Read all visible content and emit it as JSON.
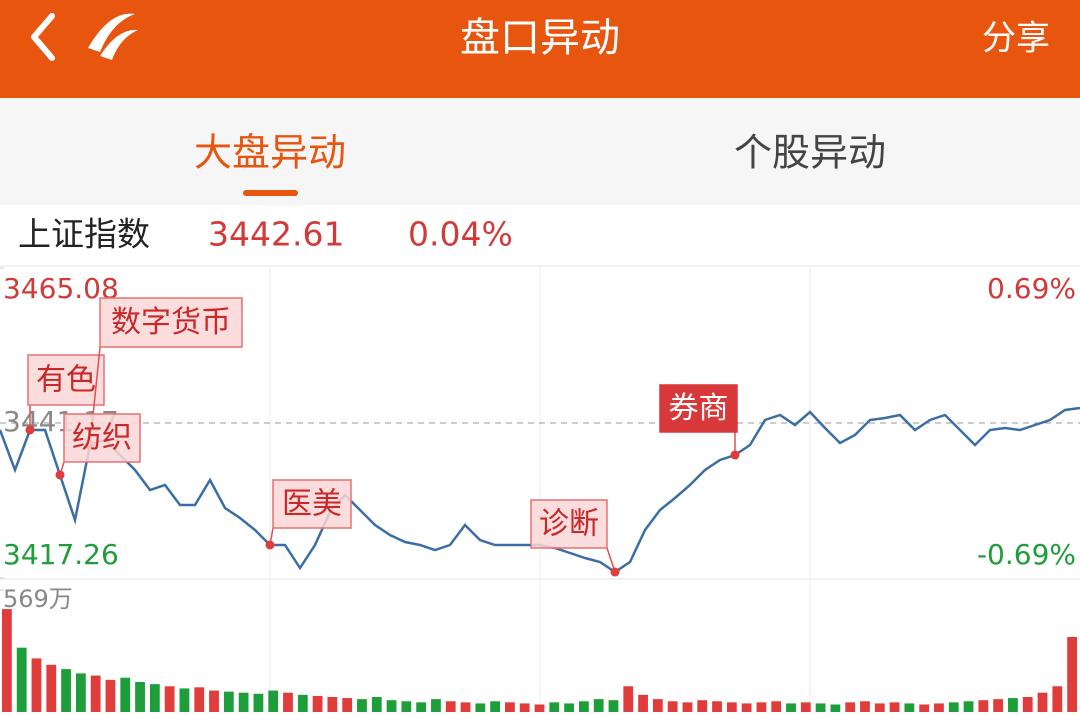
{
  "header": {
    "title": "盘口异动",
    "share": "分享"
  },
  "tabs": [
    "大盘异动",
    "个股异动"
  ],
  "index": {
    "name": "上证指数",
    "price": "3442.61",
    "change": "0.04%"
  },
  "chart_data": {
    "type": "line",
    "color": "#3a6ea5",
    "ylim": [
      3417.26,
      3465.08
    ],
    "yticks": [
      3417.26,
      3441.17,
      3465.08
    ],
    "right_labels": [
      "-0.69%",
      "0.69%"
    ],
    "values": [
      3440.09,
      3433.92,
      3440.09,
      3440.09,
      3433.15,
      3426.21,
      3437.78,
      3438.55,
      3436.23,
      3433.92,
      3430.83,
      3431.61,
      3428.52,
      3428.52,
      3432.38,
      3428.06,
      3426.52,
      3424.66,
      3422.35,
      3422.35,
      3418.8,
      3422.35,
      3427.44,
      3430.06,
      3427.75,
      3425.44,
      3423.89,
      3422.81,
      3422.35,
      3421.58,
      3422.35,
      3425.44,
      3423.12,
      3422.35,
      3422.35,
      3422.35,
      3422.35,
      3421.89,
      3421.12,
      3420.34,
      3419.73,
      3418.18,
      3419.73,
      3424.66,
      3427.75,
      3429.6,
      3431.61,
      3433.92,
      3435.46,
      3436.23,
      3437.78,
      3441.63,
      3442.4,
      3440.86,
      3442.87,
      3440.4,
      3438.08,
      3439.32,
      3441.63,
      3441.94,
      3442.4,
      3440.09,
      3441.63,
      3442.4,
      3440.09,
      3437.78,
      3440.09,
      3440.4,
      3440.09,
      3440.86,
      3441.63,
      3443.18,
      3443.48
    ],
    "annotations": [
      "有色",
      "数字货币",
      "纺织",
      "医美",
      "诊断",
      "券商"
    ],
    "volume": {
      "ylim": [
        0,
        569
      ],
      "yticks": [
        {
          "value": 569,
          "label": "569万"
        }
      ],
      "up_color": "#e03c3c",
      "down_color": "#1e9e3a",
      "values": [
        480,
        300,
        250,
        220,
        200,
        180,
        170,
        150,
        160,
        140,
        130,
        120,
        110,
        115,
        100,
        95,
        90,
        85,
        100,
        90,
        80,
        75,
        70,
        65,
        60,
        70,
        55,
        50,
        45,
        60,
        50,
        45,
        40,
        50,
        45,
        40,
        35,
        45,
        40,
        50,
        60,
        55,
        120,
        80,
        60,
        50,
        45,
        55,
        50,
        45,
        40,
        45,
        50,
        40,
        45,
        40,
        35,
        45,
        50,
        40,
        45,
        40,
        35,
        40,
        45,
        50,
        55,
        60,
        65,
        70,
        90,
        120,
        350
      ]
    }
  }
}
